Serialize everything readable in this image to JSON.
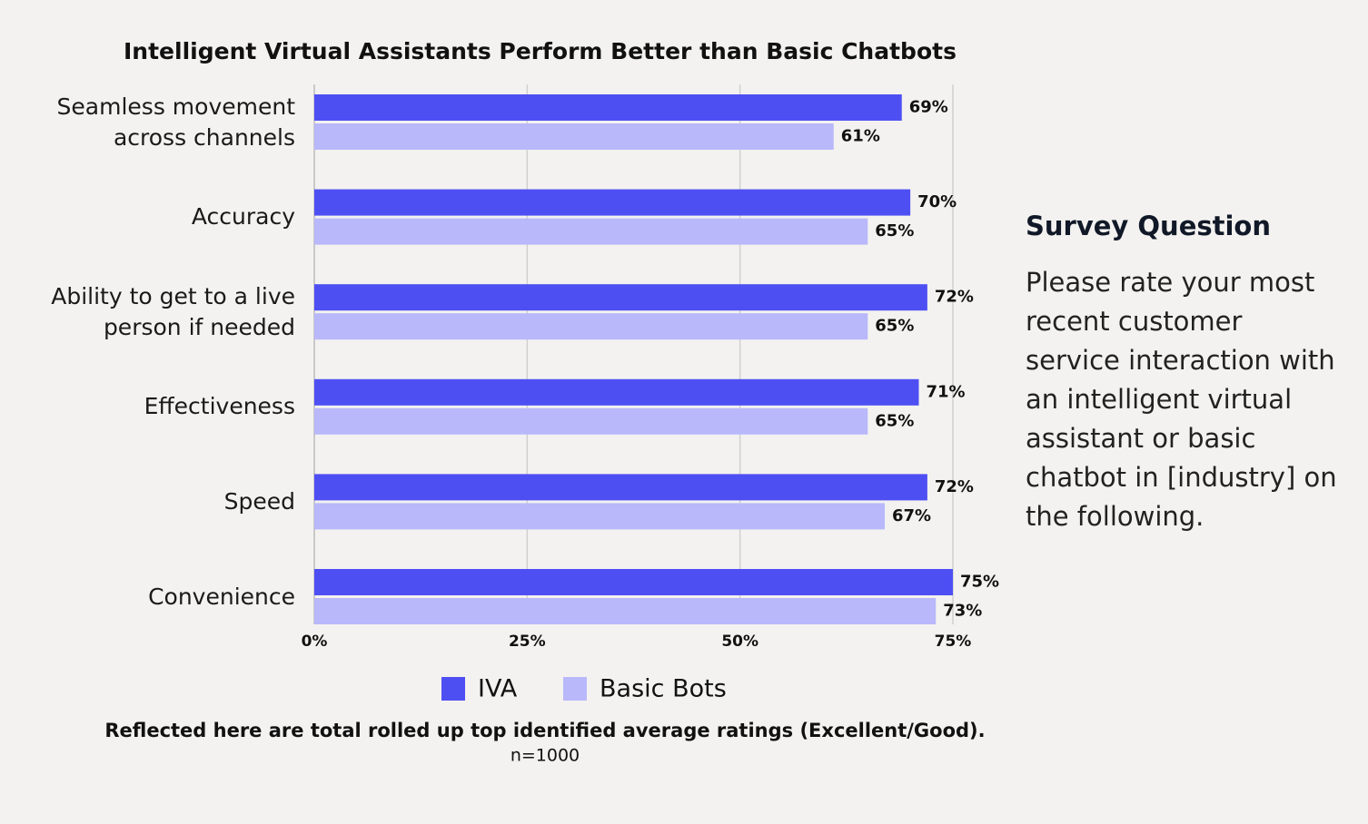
{
  "chart_data": {
    "type": "bar",
    "orientation": "horizontal",
    "title": "Intelligent Virtual Assistants Perform Better than Basic Chatbots",
    "categories": [
      "Seamless movement across channels",
      "Accuracy",
      "Ability to get to a live person if needed",
      "Effectiveness",
      "Speed",
      "Convenience"
    ],
    "series": [
      {
        "name": "IVA",
        "color": "#4e4ff3",
        "values": [
          69,
          70,
          72,
          71,
          72,
          75
        ],
        "value_labels": [
          "69%",
          "70%",
          "72%",
          "71%",
          "72%",
          "75%"
        ]
      },
      {
        "name": "Basic Bots",
        "color": "#b9b8fb",
        "values": [
          61,
          65,
          65,
          65,
          67,
          73
        ],
        "value_labels": [
          "61%",
          "65%",
          "65%",
          "65%",
          "67%",
          "73%"
        ]
      }
    ],
    "xlim": [
      0,
      75
    ],
    "xticks": [
      {
        "value": 0,
        "label": "0%"
      },
      {
        "value": 25,
        "label": "25%"
      },
      {
        "value": 50,
        "label": "50%"
      },
      {
        "value": 75,
        "label": "75%"
      }
    ],
    "grid": true,
    "legend": "bottom",
    "footnote": "Reflected here are total rolled up top identified average ratings (Excellent/Good).",
    "sample_note": "n=1000",
    "side_heading": "Survey Question",
    "side_text": "Please rate your most recent customer service interaction with an intelligent virtual assistant or basic chatbot in [industry] on the following."
  }
}
